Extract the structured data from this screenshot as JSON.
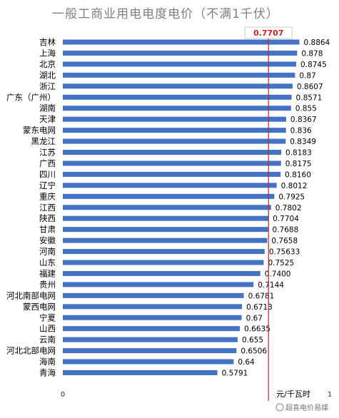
{
  "chart_data": {
    "type": "bar",
    "orientation": "horizontal",
    "title": "一般工商业用电电度电价（不满1千伏）",
    "unit": "元/千瓦时",
    "xlim": [
      0,
      1
    ],
    "x_ticks": [
      "0",
      "1"
    ],
    "bar_color": "#4472c4",
    "reference_line": {
      "value": 0.7707,
      "label": "0.7707",
      "color": "#d62020"
    },
    "categories": [
      "吉林",
      "上海",
      "北京",
      "湖北",
      "浙江",
      "广东（广州）",
      "湖南",
      "天津",
      "蒙东电网",
      "黑龙江",
      "江苏",
      "广西",
      "四川",
      "辽宁",
      "重庆",
      "江西",
      "陕西",
      "甘肃",
      "安徽",
      "河南",
      "山东",
      "福建",
      "贵州",
      "河北南部电网",
      "蒙西电网",
      "宁夏",
      "山西",
      "云南",
      "河北北部电网",
      "海南",
      "青海"
    ],
    "values": [
      0.8864,
      0.878,
      0.8745,
      0.87,
      0.8607,
      0.8571,
      0.855,
      0.8367,
      0.836,
      0.8349,
      0.8183,
      0.8175,
      0.816,
      0.8012,
      0.7925,
      0.7802,
      0.7704,
      0.7688,
      0.7658,
      0.75633,
      0.7525,
      0.74,
      0.7144,
      0.6781,
      0.6713,
      0.67,
      0.6635,
      0.655,
      0.6506,
      0.64,
      0.5791
    ],
    "value_labels": [
      "0.8864",
      "0.878",
      "0.8745",
      "0.87",
      "0.8607",
      "0.8571",
      "0.855",
      "0.8367",
      "0.836",
      "0.8349",
      "0.8183",
      "0.8175",
      "0.8160",
      "0.8012",
      "0.7925",
      "0.7802",
      "0.7704",
      "0.7688",
      "0.7658",
      "0.75633",
      "0.7525",
      "0.7400",
      "0.7144",
      "0.6781",
      "0.6713",
      "0.67",
      "0.6635",
      "0.655",
      "0.6506",
      "0.64",
      "0.5791"
    ]
  },
  "watermark": "超喜电价易媒"
}
